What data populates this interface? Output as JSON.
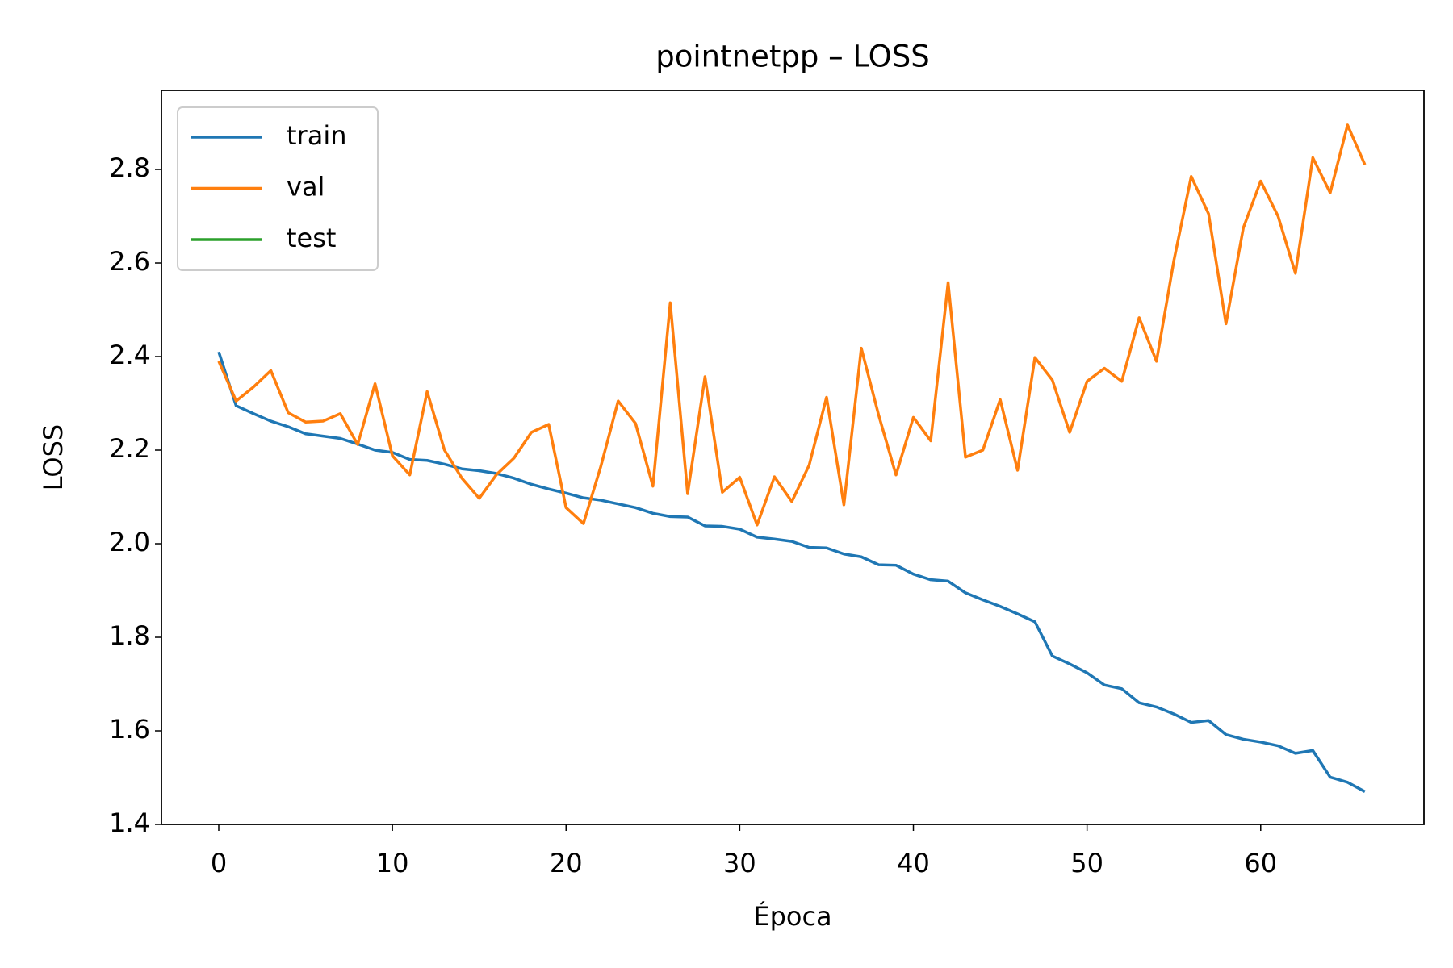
{
  "chart_data": {
    "type": "line",
    "title": "pointnetpp – LOSS",
    "x_label": "Época",
    "y_label": "LOSS",
    "x": [
      0,
      1,
      2,
      3,
      4,
      5,
      6,
      7,
      8,
      9,
      10,
      11,
      12,
      13,
      14,
      15,
      16,
      17,
      18,
      19,
      20,
      21,
      22,
      23,
      24,
      25,
      26,
      27,
      28,
      29,
      30,
      31,
      32,
      33,
      34,
      35,
      36,
      37,
      38,
      39,
      40,
      41,
      42,
      43,
      44,
      45,
      46,
      47,
      48,
      49,
      50,
      51,
      52,
      53,
      54,
      55,
      56,
      57,
      58,
      59,
      60,
      61,
      62,
      63,
      64,
      65,
      66
    ],
    "series": [
      {
        "name": "train",
        "color": "#1f77b4",
        "values": [
          2.41,
          2.295,
          2.278,
          2.262,
          2.25,
          2.235,
          2.23,
          2.225,
          2.213,
          2.2,
          2.195,
          2.18,
          2.178,
          2.17,
          2.16,
          2.156,
          2.15,
          2.14,
          2.127,
          2.117,
          2.108,
          2.098,
          2.093,
          2.085,
          2.077,
          2.065,
          2.058,
          2.057,
          2.038,
          2.037,
          2.031,
          2.014,
          2.01,
          2.005,
          1.992,
          1.991,
          1.978,
          1.972,
          1.955,
          1.954,
          1.935,
          1.923,
          1.92,
          1.895,
          1.88,
          1.866,
          1.85,
          1.833,
          1.76,
          1.743,
          1.724,
          1.698,
          1.69,
          1.66,
          1.651,
          1.636,
          1.618,
          1.622,
          1.592,
          1.582,
          1.576,
          1.568,
          1.552,
          1.558,
          1.501,
          1.49,
          1.47
        ]
      },
      {
        "name": "val",
        "color": "#ff7f0e",
        "values": [
          2.39,
          2.305,
          2.335,
          2.37,
          2.28,
          2.26,
          2.262,
          2.278,
          2.212,
          2.342,
          2.188,
          2.147,
          2.325,
          2.2,
          2.14,
          2.097,
          2.148,
          2.183,
          2.238,
          2.255,
          2.077,
          2.043,
          2.165,
          2.305,
          2.257,
          2.123,
          2.515,
          2.107,
          2.357,
          2.11,
          2.142,
          2.04,
          2.143,
          2.09,
          2.168,
          2.313,
          2.083,
          2.418,
          2.275,
          2.147,
          2.27,
          2.22,
          2.558,
          2.185,
          2.2,
          2.308,
          2.157,
          2.398,
          2.35,
          2.238,
          2.347,
          2.375,
          2.347,
          2.483,
          2.39,
          2.605,
          2.785,
          2.705,
          2.47,
          2.675,
          2.775,
          2.7,
          2.578,
          2.825,
          2.75,
          2.895,
          2.81
        ]
      },
      {
        "name": "test",
        "color": "#2ca02c",
        "values": [
          null,
          null,
          null,
          null,
          null,
          null,
          null,
          null,
          null,
          null,
          null,
          null,
          null,
          null,
          null,
          null,
          null,
          null,
          null,
          null,
          null,
          null,
          null,
          null,
          null,
          null,
          null,
          null,
          null,
          null,
          null,
          null,
          null,
          null,
          null,
          null,
          null,
          null,
          null,
          null,
          null,
          null,
          null,
          null,
          null,
          null,
          null,
          null,
          null,
          null,
          null,
          null,
          null,
          null,
          null,
          null,
          null,
          null,
          null,
          null,
          null,
          null,
          null,
          null,
          null,
          null,
          null
        ]
      }
    ],
    "xlim": [
      -3.3,
      69.4
    ],
    "xticks": [
      0,
      10,
      20,
      30,
      40,
      50,
      60
    ],
    "ylim": [
      1.4,
      2.969
    ],
    "yticks": [
      1.4,
      1.6,
      1.8,
      {
        "value": 2,
        "label": "2.0"
      },
      2.2,
      2.4,
      2.6,
      2.8
    ],
    "legend": "upper left",
    "grid": false
  }
}
